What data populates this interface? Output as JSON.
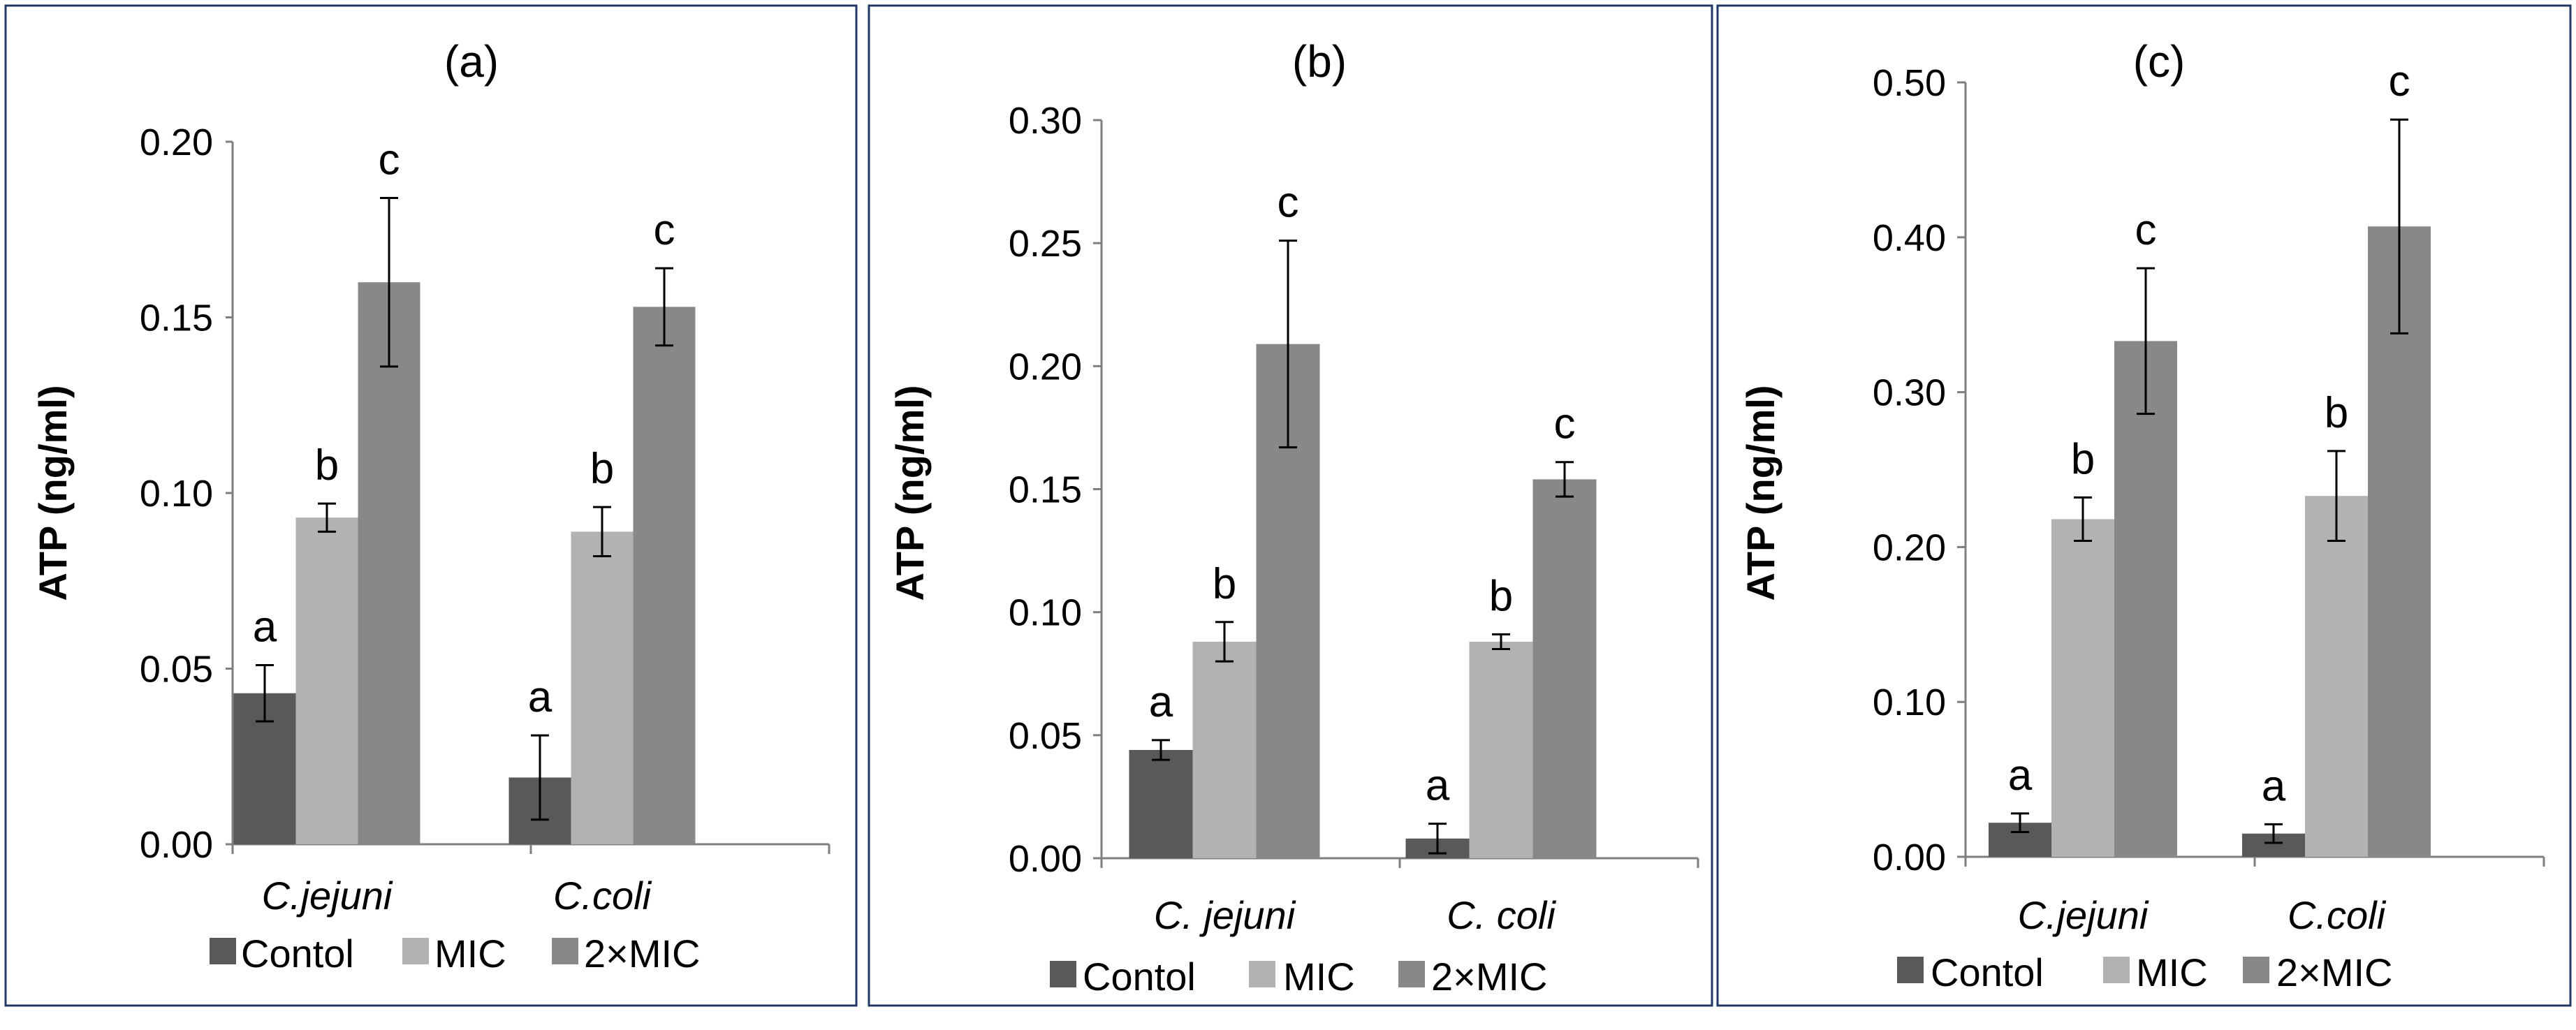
{
  "chart_data": [
    {
      "type": "bar",
      "title": "(a)",
      "xlabel": "",
      "ylabel": "ATP (ng/ml)",
      "ylim": [
        0,
        0.2
      ],
      "ytick_labels": [
        "0.00",
        "0.05",
        "0.10",
        "0.15",
        "0.20"
      ],
      "categories": [
        "C.jejuni",
        "C.coli"
      ],
      "series": [
        {
          "name": "Contol",
          "color": "#595959",
          "values": [
            0.043,
            0.019
          ],
          "errors": [
            0.008,
            0.012
          ],
          "letters": [
            "a",
            "a"
          ]
        },
        {
          "name": "MIC",
          "color": "#b2b2b2",
          "values": [
            0.093,
            0.089
          ],
          "errors": [
            0.004,
            0.007
          ],
          "letters": [
            "b",
            "b"
          ]
        },
        {
          "name": "2×MIC",
          "color": "#888888",
          "values": [
            0.16,
            0.153
          ],
          "errors": [
            0.024,
            0.011
          ],
          "letters": [
            "c",
            "c"
          ]
        }
      ],
      "legend": [
        "Contol",
        "MIC",
        "2×MIC"
      ]
    },
    {
      "type": "bar",
      "title": "(b)",
      "xlabel": "",
      "ylabel": "ATP (ng/ml)",
      "ylim": [
        0,
        0.3
      ],
      "ytick_labels": [
        "0.00",
        "0.05",
        "0.10",
        "0.15",
        "0.20",
        "0.25",
        "0.30"
      ],
      "categories": [
        "C. jejuni",
        "C. coli"
      ],
      "series": [
        {
          "name": "Contol",
          "color": "#595959",
          "values": [
            0.044,
            0.008
          ],
          "errors": [
            0.004,
            0.006
          ],
          "letters": [
            "a",
            "a"
          ]
        },
        {
          "name": "MIC",
          "color": "#b2b2b2",
          "values": [
            0.088,
            0.088
          ],
          "errors": [
            0.008,
            0.003
          ],
          "letters": [
            "b",
            "b"
          ]
        },
        {
          "name": "2×MIC",
          "color": "#888888",
          "values": [
            0.209,
            0.154
          ],
          "errors": [
            0.042,
            0.007
          ],
          "letters": [
            "c",
            "c"
          ]
        }
      ],
      "legend": [
        "Contol",
        "MIC",
        "2×MIC"
      ]
    },
    {
      "type": "bar",
      "title": "(c)",
      "xlabel": "",
      "ylabel": "ATP (ng/ml)",
      "ylim": [
        0,
        0.5
      ],
      "ytick_labels": [
        "0.00",
        "0.10",
        "0.20",
        "0.30",
        "0.40",
        "0.50"
      ],
      "categories": [
        "C.jejuni",
        "C.coli"
      ],
      "series": [
        {
          "name": "Contol",
          "color": "#595959",
          "values": [
            0.022,
            0.015
          ],
          "errors": [
            0.006,
            0.006
          ],
          "letters": [
            "a",
            "a"
          ]
        },
        {
          "name": "MIC",
          "color": "#b2b2b2",
          "values": [
            0.218,
            0.233
          ],
          "errors": [
            0.014,
            0.029
          ],
          "letters": [
            "b",
            "b"
          ]
        },
        {
          "name": "2×MIC",
          "color": "#888888",
          "values": [
            0.333,
            0.407
          ],
          "errors": [
            0.047,
            0.069
          ],
          "letters": [
            "c",
            "c"
          ]
        }
      ],
      "legend": [
        "Contol",
        "MIC",
        "2×MIC"
      ]
    }
  ],
  "style": {
    "panel_border_color": "#1f3864",
    "axis_color": "#7f7f7f",
    "error_bar_color": "#000000"
  }
}
